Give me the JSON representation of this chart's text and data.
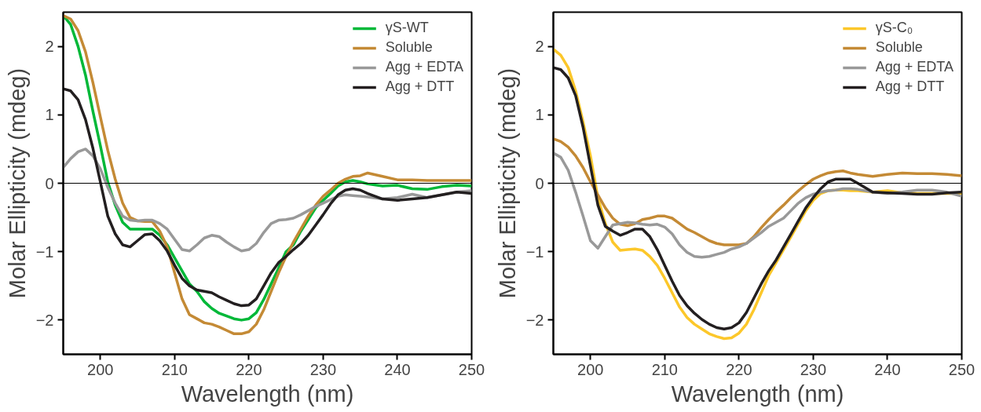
{
  "chart_data": [
    {
      "type": "line",
      "xlabel": "Wavelength (nm)",
      "ylabel": "Molar Ellipticity (mdeg)",
      "xlim": [
        195,
        250
      ],
      "ylim": [
        -2.5,
        2.5
      ],
      "xticks": [
        200,
        210,
        220,
        230,
        240,
        250
      ],
      "yticks": [
        -2,
        -1,
        0,
        1,
        2
      ],
      "grid": false,
      "legend": "top right",
      "line_style": "solid",
      "ref_lines": [
        {
          "axis": "y",
          "value": 0,
          "color": "#000000"
        }
      ],
      "x": [
        195,
        196,
        197,
        198,
        199,
        200,
        201,
        202,
        203,
        204,
        205,
        206,
        207,
        208,
        209,
        210,
        211,
        212,
        213,
        214,
        215,
        216,
        217,
        218,
        219,
        220,
        221,
        222,
        223,
        224,
        225,
        226,
        227,
        228,
        229,
        230,
        231,
        232,
        233,
        234,
        235,
        236,
        238,
        240,
        242,
        244,
        246,
        248,
        250
      ],
      "series": [
        {
          "name": "γS-WT",
          "color": "#00b838",
          "values": [
            2.45,
            2.32,
            2.0,
            1.58,
            1.05,
            0.55,
            0.02,
            -0.32,
            -0.57,
            -0.67,
            -0.67,
            -0.67,
            -0.67,
            -0.76,
            -0.9,
            -1.09,
            -1.28,
            -1.47,
            -1.58,
            -1.73,
            -1.83,
            -1.9,
            -1.94,
            -1.98,
            -2.0,
            -1.98,
            -1.89,
            -1.7,
            -1.47,
            -1.24,
            -1.0,
            -0.9,
            -0.7,
            -0.53,
            -0.36,
            -0.25,
            -0.15,
            -0.04,
            0.02,
            0.04,
            0.02,
            -0.01,
            -0.04,
            -0.03,
            -0.08,
            -0.09,
            -0.05,
            -0.03,
            -0.04
          ]
        },
        {
          "name": "Soluble",
          "color": "#c48a35",
          "values": [
            2.45,
            2.4,
            2.23,
            1.92,
            1.47,
            0.97,
            0.48,
            0.06,
            -0.29,
            -0.5,
            -0.55,
            -0.56,
            -0.56,
            -0.7,
            -0.93,
            -1.31,
            -1.69,
            -1.92,
            -1.98,
            -2.04,
            -2.06,
            -2.1,
            -2.15,
            -2.2,
            -2.2,
            -2.17,
            -2.06,
            -1.85,
            -1.58,
            -1.31,
            -1.07,
            -0.86,
            -0.67,
            -0.48,
            -0.32,
            -0.19,
            -0.1,
            0.0,
            0.06,
            0.1,
            0.11,
            0.15,
            0.1,
            0.05,
            0.05,
            0.04,
            0.04,
            0.04,
            0.04
          ]
        },
        {
          "name": "Agg + EDTA",
          "color": "#999999",
          "values": [
            0.23,
            0.36,
            0.46,
            0.5,
            0.4,
            0.21,
            -0.06,
            -0.29,
            -0.48,
            -0.54,
            -0.55,
            -0.54,
            -0.54,
            -0.59,
            -0.67,
            -0.82,
            -0.97,
            -0.99,
            -0.9,
            -0.8,
            -0.76,
            -0.78,
            -0.86,
            -0.93,
            -0.99,
            -0.97,
            -0.88,
            -0.72,
            -0.59,
            -0.54,
            -0.53,
            -0.51,
            -0.46,
            -0.4,
            -0.34,
            -0.29,
            -0.24,
            -0.19,
            -0.17,
            -0.18,
            -0.19,
            -0.2,
            -0.23,
            -0.21,
            -0.16,
            -0.21,
            -0.17,
            -0.13,
            -0.11
          ]
        },
        {
          "name": "Agg + DTT",
          "color": "#231f20",
          "values": [
            1.38,
            1.35,
            1.22,
            0.93,
            0.51,
            0.02,
            -0.48,
            -0.74,
            -0.9,
            -0.93,
            -0.84,
            -0.75,
            -0.74,
            -0.84,
            -0.99,
            -1.2,
            -1.39,
            -1.5,
            -1.56,
            -1.58,
            -1.6,
            -1.66,
            -1.71,
            -1.76,
            -1.79,
            -1.78,
            -1.69,
            -1.5,
            -1.31,
            -1.16,
            -1.07,
            -0.97,
            -0.88,
            -0.76,
            -0.61,
            -0.46,
            -0.3,
            -0.17,
            -0.1,
            -0.08,
            -0.1,
            -0.15,
            -0.23,
            -0.25,
            -0.23,
            -0.21,
            -0.17,
            -0.13,
            -0.15
          ]
        }
      ]
    },
    {
      "type": "line",
      "xlabel": "Wavelength (nm)",
      "ylabel": "Molar Ellipticity (mdeg)",
      "xlim": [
        195,
        250
      ],
      "ylim": [
        -2.5,
        2.5
      ],
      "xticks": [
        200,
        210,
        220,
        230,
        240,
        250
      ],
      "yticks": [
        -2,
        -1,
        0,
        1,
        2
      ],
      "grid": false,
      "legend": "top right",
      "line_style": "solid",
      "ref_lines": [
        {
          "axis": "y",
          "value": 0,
          "color": "#000000"
        }
      ],
      "x": [
        195,
        196,
        197,
        198,
        199,
        200,
        201,
        202,
        203,
        204,
        205,
        206,
        207,
        208,
        209,
        210,
        211,
        212,
        213,
        214,
        215,
        216,
        217,
        218,
        219,
        220,
        221,
        222,
        223,
        224,
        225,
        226,
        227,
        228,
        229,
        230,
        231,
        232,
        233,
        234,
        235,
        236,
        238,
        240,
        242,
        244,
        246,
        248,
        250
      ],
      "series": [
        {
          "name": "γS-C₀",
          "color": "#fcc72a",
          "values": [
            1.96,
            1.87,
            1.69,
            1.35,
            0.9,
            0.4,
            -0.21,
            -0.59,
            -0.86,
            -0.98,
            -0.97,
            -0.96,
            -0.98,
            -1.07,
            -1.2,
            -1.39,
            -1.6,
            -1.81,
            -1.96,
            -2.06,
            -2.13,
            -2.2,
            -2.24,
            -2.27,
            -2.26,
            -2.19,
            -2.06,
            -1.85,
            -1.6,
            -1.35,
            -1.16,
            -0.97,
            -0.78,
            -0.59,
            -0.4,
            -0.25,
            -0.15,
            -0.11,
            -0.1,
            -0.1,
            -0.11,
            -0.11,
            -0.13,
            -0.11,
            -0.14,
            -0.15,
            -0.15,
            -0.15,
            -0.15
          ]
        },
        {
          "name": "Soluble",
          "color": "#c48a35",
          "values": [
            0.65,
            0.61,
            0.53,
            0.4,
            0.23,
            0.02,
            -0.17,
            -0.36,
            -0.51,
            -0.6,
            -0.62,
            -0.59,
            -0.53,
            -0.51,
            -0.48,
            -0.48,
            -0.51,
            -0.59,
            -0.67,
            -0.72,
            -0.78,
            -0.84,
            -0.88,
            -0.9,
            -0.9,
            -0.9,
            -0.88,
            -0.78,
            -0.65,
            -0.53,
            -0.42,
            -0.32,
            -0.21,
            -0.11,
            -0.02,
            0.06,
            0.11,
            0.15,
            0.17,
            0.18,
            0.15,
            0.13,
            0.1,
            0.13,
            0.15,
            0.14,
            0.14,
            0.13,
            0.11
          ]
        },
        {
          "name": "Agg + EDTA",
          "color": "#999999",
          "values": [
            0.44,
            0.38,
            0.19,
            -0.13,
            -0.48,
            -0.84,
            -0.95,
            -0.78,
            -0.61,
            -0.59,
            -0.57,
            -0.58,
            -0.6,
            -0.61,
            -0.6,
            -0.64,
            -0.74,
            -0.9,
            -1.01,
            -1.07,
            -1.08,
            -1.07,
            -1.04,
            -1.01,
            -0.96,
            -0.93,
            -0.88,
            -0.8,
            -0.72,
            -0.63,
            -0.57,
            -0.51,
            -0.4,
            -0.29,
            -0.21,
            -0.16,
            -0.13,
            -0.11,
            -0.1,
            -0.08,
            -0.08,
            -0.09,
            -0.13,
            -0.15,
            -0.13,
            -0.1,
            -0.1,
            -0.13,
            -0.19
          ]
        },
        {
          "name": "Agg + DTT",
          "color": "#231f20",
          "values": [
            1.69,
            1.66,
            1.54,
            1.28,
            0.82,
            0.25,
            -0.32,
            -0.63,
            -0.7,
            -0.76,
            -0.72,
            -0.67,
            -0.67,
            -0.78,
            -0.97,
            -1.2,
            -1.43,
            -1.64,
            -1.79,
            -1.9,
            -1.99,
            -2.06,
            -2.11,
            -2.13,
            -2.11,
            -2.04,
            -1.89,
            -1.68,
            -1.47,
            -1.28,
            -1.12,
            -0.93,
            -0.74,
            -0.55,
            -0.36,
            -0.21,
            -0.08,
            0.02,
            0.06,
            0.06,
            0.06,
            0.0,
            -0.13,
            -0.14,
            -0.15,
            -0.16,
            -0.16,
            -0.14,
            -0.13
          ]
        }
      ]
    }
  ]
}
